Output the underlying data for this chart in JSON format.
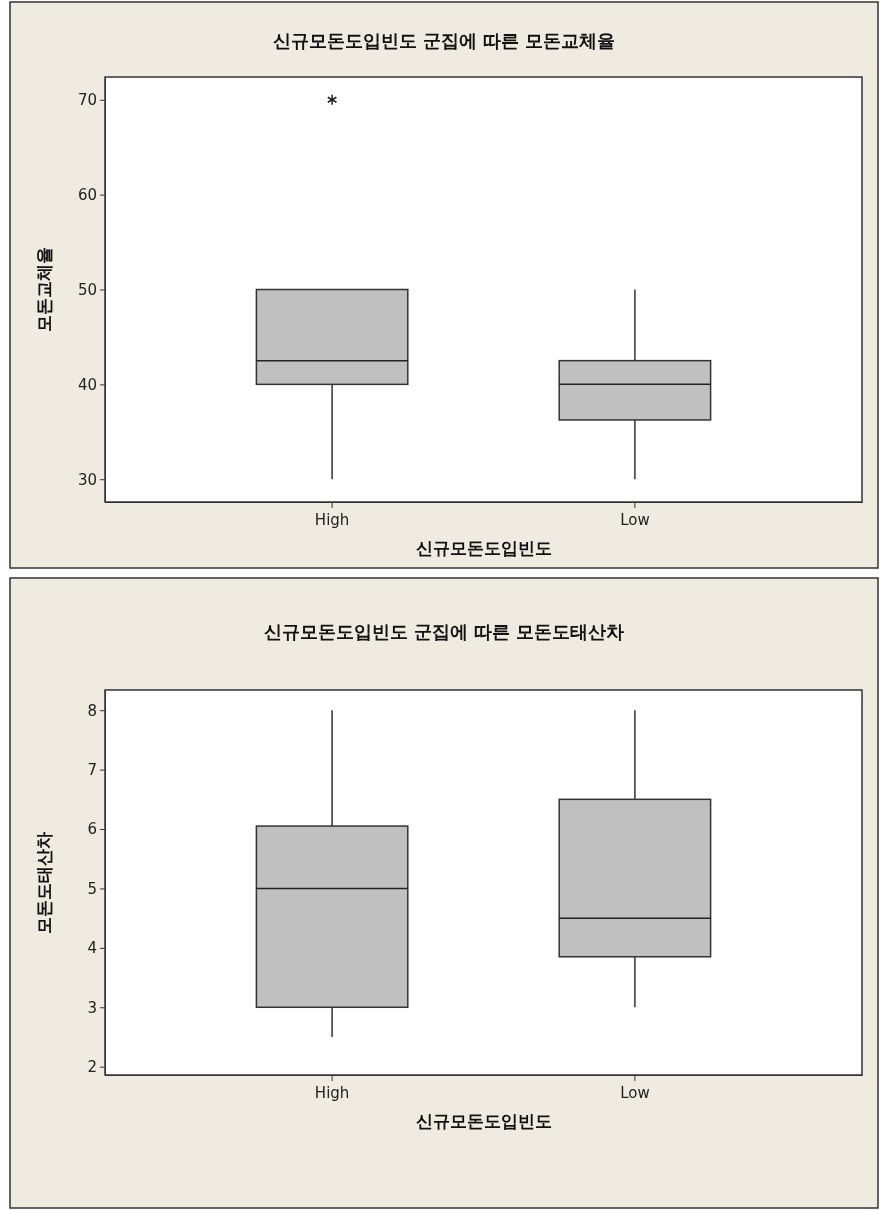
{
  "chart_data": [
    {
      "type": "box",
      "title": "신규모돈도입빈도 군집에 따른 모돈교체율",
      "xlabel": "신규모돈도입빈도",
      "ylabel": "모돈교체율",
      "categories": [
        "High",
        "Low"
      ],
      "color": "#c0c0c0",
      "ylim": [
        27.6,
        72.4
      ],
      "yticks": [
        30,
        40,
        50,
        60,
        70
      ],
      "grid": false,
      "marker": "star",
      "boxes": [
        {
          "low": 30,
          "q1": 40,
          "median": 42.5,
          "q3": 50,
          "high": 50,
          "outliers": [
            70
          ]
        },
        {
          "low": 30,
          "q1": 36.25,
          "median": 40,
          "q3": 42.5,
          "high": 50
        }
      ]
    },
    {
      "type": "box",
      "title": "신규모돈도입빈도 군집에 따른 모돈도태산차",
      "xlabel": "신규모돈도입빈도",
      "ylabel": "모돈도태산차",
      "categories": [
        "High",
        "Low"
      ],
      "color": "#c0c0c0",
      "ylim": [
        1.86,
        8.34
      ],
      "yticks": [
        2,
        3,
        4,
        5,
        6,
        7,
        8
      ],
      "grid": false,
      "boxes": [
        {
          "low": 2.5,
          "q1": 3,
          "median": 5,
          "q3": 6.05,
          "high": 8
        },
        {
          "low": 3,
          "q1": 3.85,
          "median": 4.5,
          "q3": 6.5,
          "high": 8
        }
      ]
    }
  ]
}
